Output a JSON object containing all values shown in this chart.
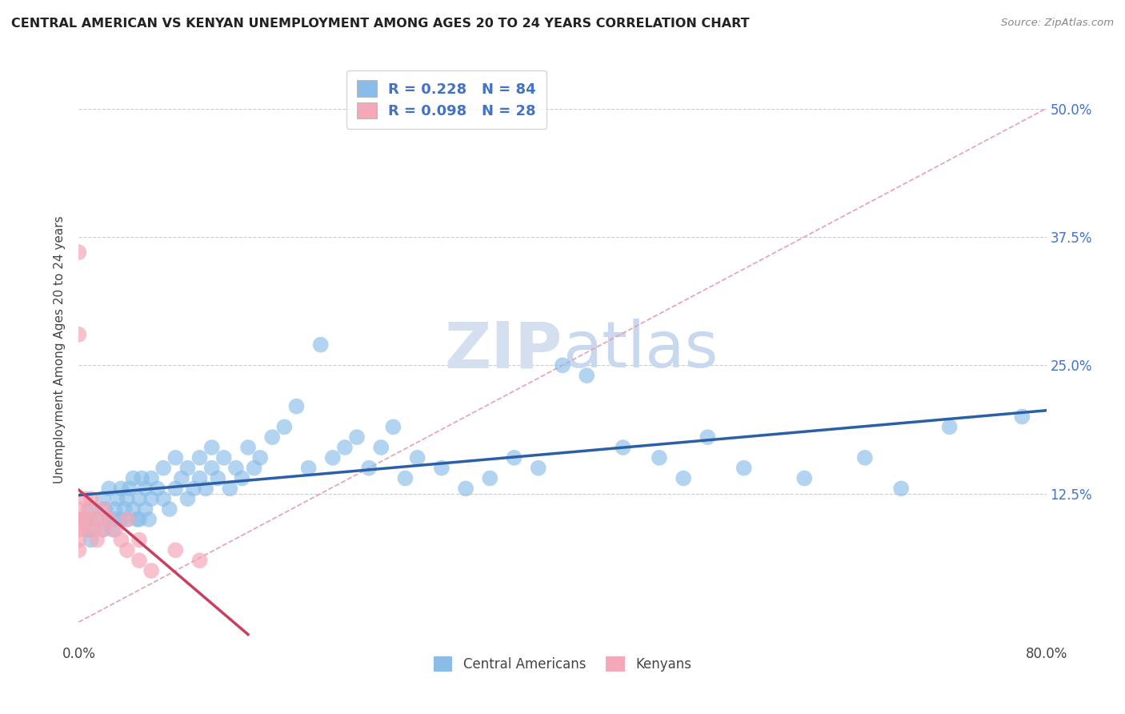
{
  "title": "CENTRAL AMERICAN VS KENYAN UNEMPLOYMENT AMONG AGES 20 TO 24 YEARS CORRELATION CHART",
  "source": "Source: ZipAtlas.com",
  "ylabel": "Unemployment Among Ages 20 to 24 years",
  "xlim": [
    0.0,
    0.8
  ],
  "ylim": [
    -0.02,
    0.55
  ],
  "ytick_positions": [
    0.0,
    0.125,
    0.25,
    0.375,
    0.5
  ],
  "ytick_labels": [
    "",
    "12.5%",
    "25.0%",
    "37.5%",
    "50.0%"
  ],
  "xtick_positions": [
    0.0,
    0.8
  ],
  "xtick_labels": [
    "0.0%",
    "80.0%"
  ],
  "blue_R": 0.228,
  "blue_N": 84,
  "pink_R": 0.098,
  "pink_N": 28,
  "blue_color": "#89bde8",
  "pink_color": "#f4a8b8",
  "blue_line_color": "#2b5fa6",
  "pink_line_color": "#c84060",
  "ref_line_color": "#e8a0b0",
  "watermark_color": "#d4dff0",
  "legend_blue_label": "Central Americans",
  "legend_pink_label": "Kenyans",
  "blue_scatter_x": [
    0.005,
    0.008,
    0.01,
    0.01,
    0.015,
    0.02,
    0.02,
    0.022,
    0.025,
    0.025,
    0.028,
    0.03,
    0.03,
    0.032,
    0.035,
    0.035,
    0.038,
    0.04,
    0.04,
    0.042,
    0.045,
    0.045,
    0.048,
    0.05,
    0.05,
    0.052,
    0.055,
    0.055,
    0.058,
    0.06,
    0.06,
    0.065,
    0.07,
    0.07,
    0.075,
    0.08,
    0.08,
    0.085,
    0.09,
    0.09,
    0.095,
    0.1,
    0.1,
    0.105,
    0.11,
    0.11,
    0.115,
    0.12,
    0.125,
    0.13,
    0.135,
    0.14,
    0.145,
    0.15,
    0.16,
    0.17,
    0.18,
    0.19,
    0.2,
    0.21,
    0.22,
    0.23,
    0.24,
    0.25,
    0.26,
    0.27,
    0.28,
    0.3,
    0.32,
    0.34,
    0.36,
    0.38,
    0.4,
    0.42,
    0.45,
    0.48,
    0.5,
    0.52,
    0.55,
    0.6,
    0.65,
    0.68,
    0.72,
    0.78
  ],
  "blue_scatter_y": [
    0.1,
    0.09,
    0.11,
    0.08,
    0.1,
    0.12,
    0.09,
    0.11,
    0.1,
    0.13,
    0.09,
    0.11,
    0.1,
    0.12,
    0.1,
    0.13,
    0.11,
    0.12,
    0.1,
    0.13,
    0.11,
    0.14,
    0.1,
    0.12,
    0.1,
    0.14,
    0.11,
    0.13,
    0.1,
    0.12,
    0.14,
    0.13,
    0.12,
    0.15,
    0.11,
    0.13,
    0.16,
    0.14,
    0.12,
    0.15,
    0.13,
    0.14,
    0.16,
    0.13,
    0.15,
    0.17,
    0.14,
    0.16,
    0.13,
    0.15,
    0.14,
    0.17,
    0.15,
    0.16,
    0.18,
    0.19,
    0.21,
    0.15,
    0.27,
    0.16,
    0.17,
    0.18,
    0.15,
    0.17,
    0.19,
    0.14,
    0.16,
    0.15,
    0.13,
    0.14,
    0.16,
    0.15,
    0.25,
    0.24,
    0.17,
    0.16,
    0.14,
    0.18,
    0.15,
    0.14,
    0.16,
    0.13,
    0.19,
    0.2
  ],
  "pink_scatter_x": [
    0.0,
    0.0,
    0.0,
    0.0,
    0.0,
    0.0,
    0.0,
    0.005,
    0.005,
    0.005,
    0.008,
    0.01,
    0.01,
    0.012,
    0.015,
    0.018,
    0.02,
    0.02,
    0.025,
    0.03,
    0.035,
    0.04,
    0.04,
    0.05,
    0.05,
    0.06,
    0.08,
    0.1
  ],
  "pink_scatter_y": [
    0.36,
    0.28,
    0.11,
    0.1,
    0.09,
    0.08,
    0.07,
    0.12,
    0.1,
    0.09,
    0.11,
    0.1,
    0.12,
    0.09,
    0.08,
    0.1,
    0.09,
    0.11,
    0.1,
    0.09,
    0.08,
    0.1,
    0.07,
    0.06,
    0.08,
    0.05,
    0.07,
    0.06
  ]
}
